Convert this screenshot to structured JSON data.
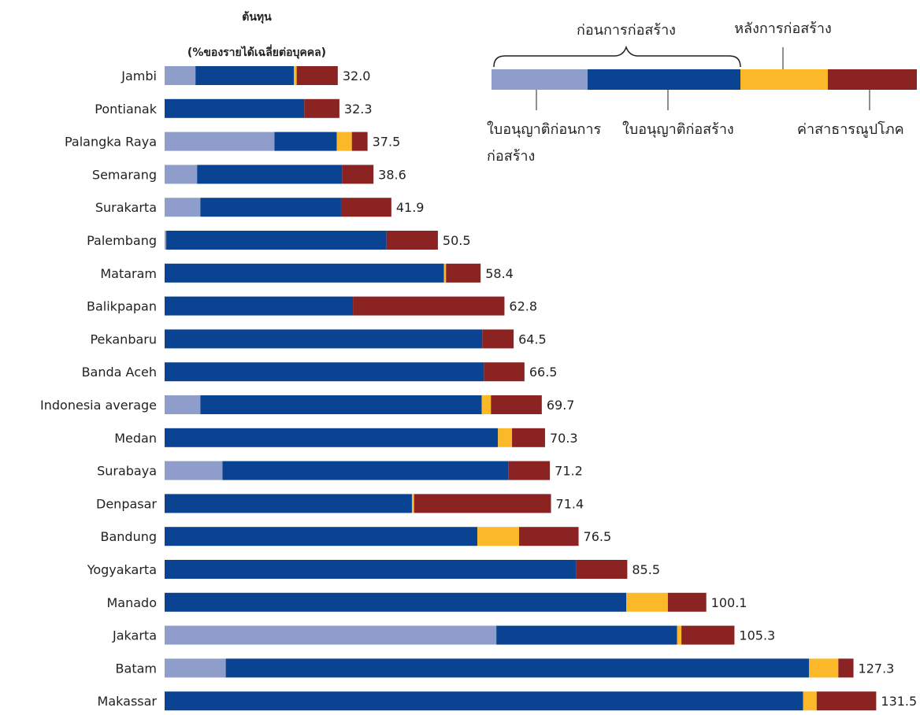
{
  "chart_data": {
    "type": "bar",
    "orientation": "horizontal",
    "stacked": true,
    "title": "ต้นทุน",
    "subtitle": "(%ของรายได้เฉลี่ยต่อบุคคล)",
    "group_labels": {
      "pre": "ก่อนการก่อสร้าง",
      "post": "หลังการก่อสร้าง"
    },
    "categories": [
      "Jambi",
      "Pontianak",
      "Palangka Raya",
      "Semarang",
      "Surakarta",
      "Palembang",
      "Mataram",
      "Balikpapan",
      "Pekanbaru",
      "Banda Aceh",
      "Indonesia average",
      "Medan",
      "Surabaya",
      "Denpasar",
      "Bandung",
      "Yogyakarta",
      "Manado",
      "Jakarta",
      "Batam",
      "Makassar"
    ],
    "totals": [
      "32.0",
      "32.3",
      "37.5",
      "38.6",
      "41.9",
      "50.5",
      "58.4",
      "62.8",
      "64.5",
      "66.5",
      "69.7",
      "70.3",
      "71.2",
      "71.4",
      "76.5",
      "85.5",
      "100.1",
      "105.3",
      "127.3",
      "131.5"
    ],
    "series": [
      {
        "name": "ใบอนุญาติก่อนการ ก่อสร้าง",
        "color": "#8e9dca",
        "values": [
          5.7,
          0,
          20.3,
          6.0,
          6.6,
          0.3,
          0,
          0,
          0,
          0,
          6.6,
          0,
          10.7,
          0,
          0,
          0,
          0,
          61.3,
          11.3,
          0
        ]
      },
      {
        "name": "ใบอนุญาติก่อสร้าง",
        "color": "#0a4391",
        "values": [
          18.2,
          25.8,
          11.5,
          26.8,
          26.0,
          40.7,
          51.6,
          34.8,
          58.7,
          59.0,
          52.0,
          61.6,
          52.8,
          45.7,
          57.8,
          76.0,
          85.3,
          33.4,
          107.8,
          118.0
        ]
      },
      {
        "name": "หลังการก่อสร้าง",
        "color": "#fbb829",
        "values": [
          0.5,
          0,
          2.8,
          0,
          0,
          0,
          0.4,
          0,
          0,
          0,
          1.7,
          2.6,
          0,
          0.4,
          7.7,
          0,
          7.7,
          0.8,
          5.4,
          2.5
        ]
      },
      {
        "name": "ค่าสาธารณูปโภค",
        "color": "#8c2323",
        "values": [
          7.6,
          6.5,
          2.9,
          5.8,
          9.3,
          9.5,
          6.4,
          28.0,
          5.8,
          7.5,
          9.4,
          6.1,
          7.7,
          25.3,
          11.0,
          9.5,
          7.1,
          9.8,
          2.8,
          11.0
        ]
      }
    ],
    "xlim": [
      0,
      135
    ],
    "grid": false,
    "legend_position": "top-right"
  }
}
